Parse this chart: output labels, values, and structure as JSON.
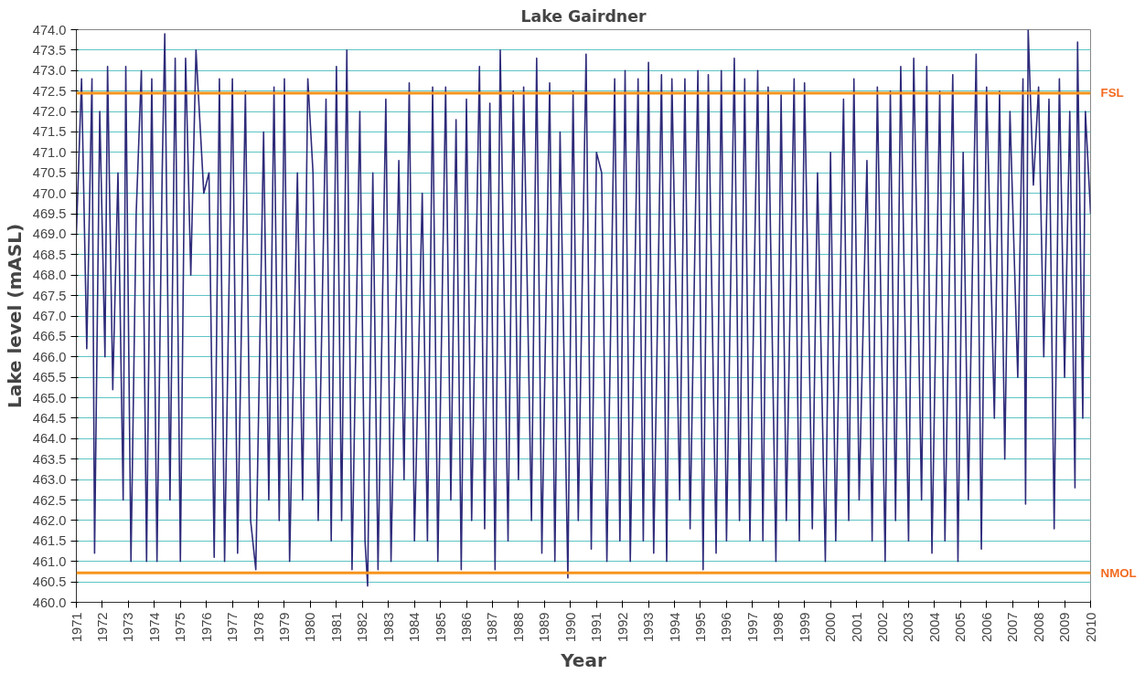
{
  "chart_data": {
    "type": "line",
    "title": "Lake Gairdner",
    "xlabel": "Year",
    "ylabel": "Lake level (mASL)",
    "x": [
      1971.0,
      1971.2,
      1971.4,
      1971.6,
      1971.7,
      1971.9,
      1972.1,
      1972.2,
      1972.4,
      1972.6,
      1972.8,
      1972.9,
      1973.1,
      1973.3,
      1973.5,
      1973.7,
      1973.9,
      1974.1,
      1974.3,
      1974.4,
      1974.6,
      1974.8,
      1975.0,
      1975.2,
      1975.4,
      1975.6,
      1975.9,
      1976.1,
      1976.3,
      1976.5,
      1976.7,
      1977.0,
      1977.2,
      1977.5,
      1977.7,
      1977.9,
      1978.2,
      1978.4,
      1978.6,
      1978.8,
      1979.0,
      1979.2,
      1979.5,
      1979.7,
      1979.9,
      1980.1,
      1980.3,
      1980.6,
      1980.8,
      1981.0,
      1981.2,
      1981.4,
      1981.6,
      1981.9,
      1982.1,
      1982.2,
      1982.4,
      1982.6,
      1982.9,
      1983.1,
      1983.4,
      1983.6,
      1983.8,
      1984.0,
      1984.3,
      1984.5,
      1984.7,
      1984.9,
      1985.2,
      1985.4,
      1985.6,
      1985.8,
      1986.0,
      1986.2,
      1986.5,
      1986.7,
      1986.9,
      1987.1,
      1987.3,
      1987.6,
      1987.8,
      1988.0,
      1988.2,
      1988.5,
      1988.7,
      1988.9,
      1989.2,
      1989.4,
      1989.6,
      1989.9,
      1990.1,
      1990.3,
      1990.6,
      1990.8,
      1991.0,
      1991.2,
      1991.4,
      1991.7,
      1991.9,
      1992.1,
      1992.3,
      1992.6,
      1992.8,
      1993.0,
      1993.2,
      1993.5,
      1993.7,
      1993.9,
      1994.2,
      1994.4,
      1994.6,
      1994.9,
      1995.1,
      1995.3,
      1995.6,
      1995.8,
      1996.0,
      1996.3,
      1996.5,
      1996.7,
      1996.9,
      1997.2,
      1997.4,
      1997.6,
      1997.9,
      1998.1,
      1998.3,
      1998.6,
      1998.8,
      1999.0,
      1999.3,
      1999.5,
      1999.8,
      2000.0,
      2000.2,
      2000.5,
      2000.7,
      2000.9,
      2001.1,
      2001.4,
      2001.6,
      2001.8,
      2002.1,
      2002.3,
      2002.5,
      2002.7,
      2003.0,
      2003.2,
      2003.5,
      2003.7,
      2003.9,
      2004.2,
      2004.4,
      2004.7,
      2004.9,
      2005.1,
      2005.3,
      2005.6,
      2005.8,
      2006.0,
      2006.3,
      2006.5,
      2006.7,
      2006.9,
      2007.2,
      2007.4,
      2007.5,
      2007.6,
      2007.8,
      2008.0,
      2008.2,
      2008.4,
      2008.6,
      2008.8,
      2009.0,
      2009.2,
      2009.4,
      2009.5,
      2009.7,
      2009.8,
      2010.0
    ],
    "series": [
      {
        "color": "#2e2b7a",
        "values": [
          469.0,
          472.8,
          466.2,
          472.8,
          461.2,
          472.0,
          466.0,
          473.1,
          465.2,
          470.5,
          462.5,
          473.1,
          461.0,
          469.5,
          473.0,
          461.0,
          472.8,
          461.0,
          470.5,
          473.9,
          462.5,
          473.3,
          461.0,
          473.3,
          468.0,
          473.5,
          470.0,
          470.5,
          461.1,
          472.8,
          461.0,
          472.8,
          461.2,
          472.5,
          462.0,
          460.8,
          471.5,
          462.5,
          472.6,
          462.0,
          472.8,
          461.0,
          470.5,
          462.5,
          472.8,
          470.5,
          462.0,
          472.3,
          461.5,
          473.1,
          462.0,
          473.5,
          460.8,
          472.0,
          461.5,
          460.4,
          470.5,
          460.8,
          472.3,
          461.0,
          470.8,
          463.0,
          472.7,
          461.5,
          470.0,
          461.5,
          472.6,
          461.0,
          472.6,
          462.5,
          471.8,
          460.8,
          472.3,
          462.0,
          473.1,
          461.8,
          472.2,
          460.8,
          473.5,
          461.5,
          472.5,
          463.0,
          472.6,
          462.0,
          473.3,
          461.2,
          472.7,
          461.0,
          471.5,
          460.6,
          472.5,
          462.0,
          473.4,
          461.3,
          471.0,
          470.5,
          461.0,
          472.8,
          461.5,
          473.0,
          461.0,
          472.8,
          461.5,
          473.2,
          461.2,
          472.9,
          461.0,
          472.8,
          462.5,
          472.8,
          461.8,
          473.0,
          460.8,
          472.9,
          461.2,
          473.0,
          461.5,
          473.3,
          462.0,
          472.8,
          461.5,
          473.0,
          461.5,
          472.6,
          461.0,
          472.4,
          462.0,
          472.8,
          461.5,
          472.7,
          461.8,
          470.5,
          461.0,
          471.0,
          461.5,
          472.3,
          462.0,
          472.8,
          462.5,
          470.8,
          461.5,
          472.6,
          461.0,
          472.5,
          462.0,
          473.1,
          461.5,
          473.3,
          462.5,
          473.1,
          461.2,
          472.5,
          461.5,
          472.9,
          461.0,
          471.0,
          462.5,
          473.4,
          461.3,
          472.6,
          464.5,
          472.5,
          463.5,
          472.0,
          465.5,
          472.8,
          462.4,
          474.0,
          470.2,
          472.6,
          466.0,
          472.3,
          461.8,
          472.8,
          465.5,
          472.0,
          462.8,
          473.7,
          464.5,
          472.0,
          469.5
        ]
      }
    ],
    "xlim": [
      1971,
      2010
    ],
    "ylim": [
      460,
      474
    ],
    "xticks": [
      1971,
      1972,
      1973,
      1974,
      1975,
      1976,
      1977,
      1978,
      1979,
      1980,
      1981,
      1982,
      1983,
      1984,
      1985,
      1986,
      1987,
      1988,
      1989,
      1990,
      1991,
      1992,
      1993,
      1994,
      1995,
      1996,
      1997,
      1998,
      1999,
      2000,
      2001,
      2002,
      2003,
      2004,
      2005,
      2006,
      2007,
      2008,
      2009,
      2010
    ],
    "yticks": [
      {
        "value": 460,
        "label": "460.0"
      },
      {
        "value": 460.5,
        "label": "460.5"
      },
      {
        "value": 461,
        "label": "461.0"
      },
      {
        "value": 461.5,
        "label": "461.5"
      },
      {
        "value": 462,
        "label": "462.0"
      },
      {
        "value": 462.5,
        "label": "462.5"
      },
      {
        "value": 463,
        "label": "463.0"
      },
      {
        "value": 463.5,
        "label": "463.5"
      },
      {
        "value": 464,
        "label": "464.0"
      },
      {
        "value": 464.5,
        "label": "464.5"
      },
      {
        "value": 465,
        "label": "465.0"
      },
      {
        "value": 465.5,
        "label": "465.5"
      },
      {
        "value": 466,
        "label": "466.0"
      },
      {
        "value": 466.5,
        "label": "466.5"
      },
      {
        "value": 467,
        "label": "467.0"
      },
      {
        "value": 467.5,
        "label": "467.5"
      },
      {
        "value": 468,
        "label": "468.0"
      },
      {
        "value": 468.5,
        "label": "468.5"
      },
      {
        "value": 469,
        "label": "469.0"
      },
      {
        "value": 469.5,
        "label": "469.5"
      },
      {
        "value": 470,
        "label": "470.0"
      },
      {
        "value": 470.5,
        "label": "470.5"
      },
      {
        "value": 471,
        "label": "471.0"
      },
      {
        "value": 471.5,
        "label": "471.5"
      },
      {
        "value": 472,
        "label": "472.0"
      },
      {
        "value": 472.5,
        "label": "472.5"
      },
      {
        "value": 473,
        "label": "473.0"
      },
      {
        "value": 473.5,
        "label": "473.5"
      },
      {
        "value": 474,
        "label": "474.0"
      }
    ],
    "grid": "y",
    "marker": "none",
    "line_style": "solid",
    "ref_lines": [
      {
        "axis": "y",
        "value": 472.45,
        "label": "FSL",
        "color": "#f7941d"
      },
      {
        "axis": "y",
        "value": 460.72,
        "label": "NMOL",
        "color": "#f7941d"
      }
    ]
  }
}
